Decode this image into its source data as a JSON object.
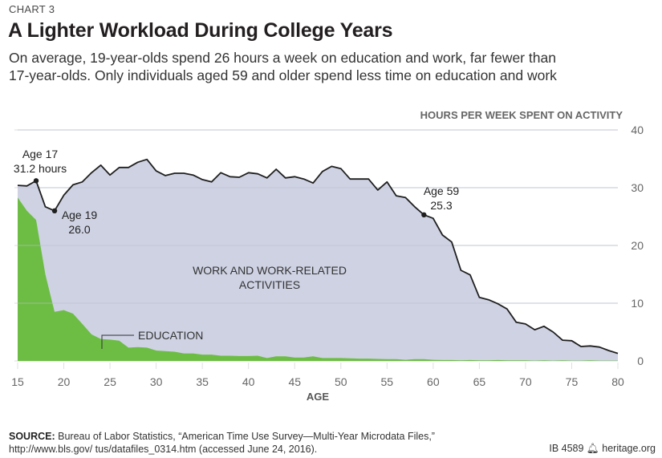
{
  "header": {
    "kicker": "CHART 3",
    "title": "A Lighter Workload During College Years",
    "subtitle_line1": "On average, 19-year-olds spend 26 hours a week on education and work, far fewer than",
    "subtitle_line2": "17-year-olds. Only individuals aged 59 and older spend less time on education and work"
  },
  "footer": {
    "source_label": "SOURCE:",
    "source_line1": " Bureau of Labor Statistics, “American Time Use Survey—Multi-Year Microdata Files,”",
    "source_line2": "http://www.bls.gov/ tus/datafiles_0314.htm (accessed June 24, 2016).",
    "id": "IB 4589",
    "logo_icon": "bell-icon",
    "site": "heritage.org"
  },
  "colors": {
    "work_fill": "#ced2e3",
    "education_fill": "#6dbd45",
    "total_line": "#1f1f1f",
    "grid": "#e3e3e3",
    "axis_text": "#666666"
  },
  "chart_data": {
    "type": "area",
    "title": "A Lighter Workload During College Years",
    "xlabel": "AGE",
    "ylabel": "HOURS PER WEEK SPENT ON ACTIVITY",
    "xlim": [
      15,
      80
    ],
    "ylim": [
      0,
      40
    ],
    "xticks": [
      15,
      20,
      25,
      30,
      35,
      40,
      45,
      50,
      55,
      60,
      65,
      70,
      75,
      80
    ],
    "yticks": [
      0,
      10,
      20,
      30,
      40
    ],
    "grid": true,
    "y_axis_side": "right",
    "x": [
      15,
      16,
      17,
      18,
      19,
      20,
      21,
      22,
      23,
      24,
      25,
      26,
      27,
      28,
      29,
      30,
      31,
      32,
      33,
      34,
      35,
      36,
      37,
      38,
      39,
      40,
      41,
      42,
      43,
      44,
      45,
      46,
      47,
      48,
      49,
      50,
      51,
      52,
      53,
      54,
      55,
      56,
      57,
      58,
      59,
      60,
      61,
      62,
      63,
      64,
      65,
      66,
      67,
      68,
      69,
      70,
      71,
      72,
      73,
      74,
      75,
      76,
      77,
      78,
      79,
      80
    ],
    "series": [
      {
        "name": "Total (education and work)",
        "style": "line",
        "values": [
          30.4,
          30.3,
          31.2,
          26.7,
          26.0,
          28.7,
          30.5,
          31.0,
          32.6,
          33.9,
          32.2,
          33.5,
          33.5,
          34.4,
          34.9,
          32.9,
          32.1,
          32.5,
          32.5,
          32.2,
          31.4,
          31.0,
          32.6,
          31.9,
          31.8,
          32.6,
          32.4,
          31.7,
          33.2,
          31.7,
          31.9,
          31.5,
          30.8,
          32.8,
          33.7,
          33.3,
          31.5,
          31.5,
          31.5,
          29.6,
          31.0,
          28.6,
          28.3,
          26.7,
          25.3,
          24.7,
          21.8,
          20.6,
          15.7,
          14.9,
          11.0,
          10.6,
          9.9,
          9.0,
          6.7,
          6.4,
          5.4,
          6.0,
          5.0,
          3.6,
          3.5,
          2.5,
          2.6,
          2.4,
          1.8,
          1.3
        ]
      },
      {
        "name": "EDUCATION",
        "style": "area",
        "values": [
          28.3,
          26.0,
          24.4,
          15.0,
          8.5,
          8.8,
          8.2,
          6.4,
          4.6,
          3.8,
          3.7,
          3.5,
          2.3,
          2.4,
          2.3,
          1.8,
          1.7,
          1.6,
          1.3,
          1.3,
          1.1,
          1.1,
          0.9,
          0.9,
          0.85,
          0.85,
          0.9,
          0.5,
          0.8,
          0.8,
          0.6,
          0.6,
          0.8,
          0.5,
          0.5,
          0.5,
          0.45,
          0.4,
          0.4,
          0.35,
          0.3,
          0.3,
          0.2,
          0.3,
          0.3,
          0.2,
          0.15,
          0.15,
          0.1,
          0.15,
          0.1,
          0.1,
          0.15,
          0.1,
          0.1,
          0.1,
          0.05,
          0.1,
          0.05,
          0.1,
          0.05,
          0.05,
          0.1,
          0.05,
          0.05,
          0.05
        ]
      },
      {
        "name": "WORK AND WORK-RELATED ACTIVITIES",
        "style": "area",
        "note": "fills between education and total"
      }
    ],
    "labels": {
      "work_line1": "WORK AND WORK-RELATED",
      "work_line2": "ACTIVITIES",
      "education": "EDUCATION"
    },
    "annotations": [
      {
        "age": 17,
        "value": 31.2,
        "line1": "Age 17",
        "line2": "31.2 hours"
      },
      {
        "age": 19,
        "value": 26.0,
        "line1": "Age 19",
        "line2": "26.0"
      },
      {
        "age": 59,
        "value": 25.3,
        "line1": "Age 59",
        "line2": "25.3"
      }
    ]
  }
}
